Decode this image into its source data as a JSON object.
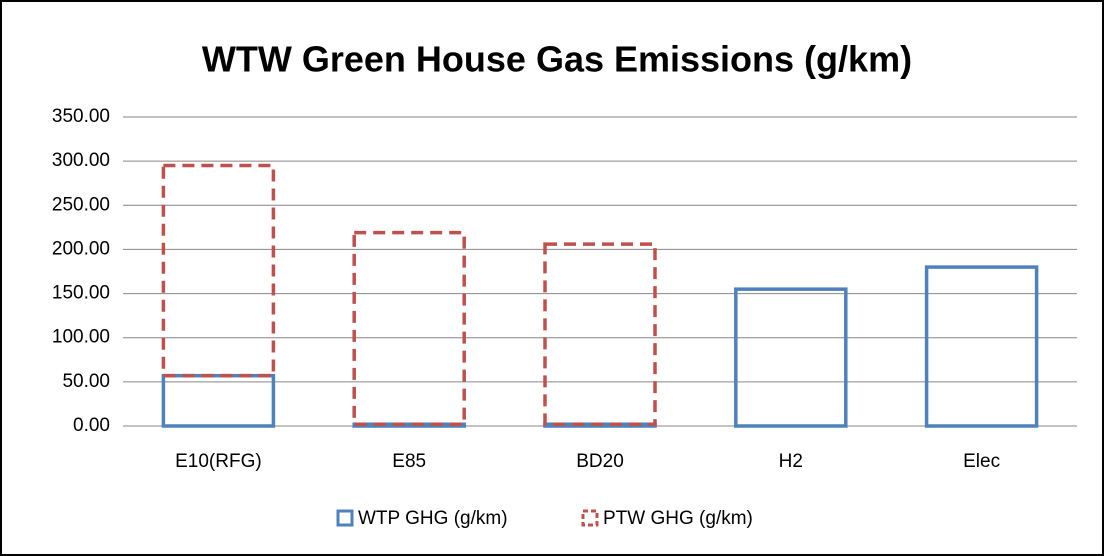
{
  "chart_data": {
    "type": "stacked_bar",
    "title": "WTW Green House Gas Emissions (g/km)",
    "categories": [
      "E10(RFG)",
      "E85",
      "BD20",
      "H2",
      "Elec"
    ],
    "series": [
      {
        "name": "WTP GHG (g/km)",
        "color": "#4f81bd",
        "line_style": "solid",
        "values": [
          57,
          2,
          2,
          155,
          180
        ]
      },
      {
        "name": "PTW GHG (g/km)",
        "color": "#c0504d",
        "line_style": "dashed",
        "values": [
          238,
          217,
          204,
          0,
          0
        ]
      }
    ],
    "ylim": [
      0,
      350
    ],
    "yticks": [
      {
        "value": 0,
        "label": "0.00"
      },
      {
        "value": 50,
        "label": "50.00"
      },
      {
        "value": 100,
        "label": "100.00"
      },
      {
        "value": 150,
        "label": "150.00"
      },
      {
        "value": 200,
        "label": "200.00"
      },
      {
        "value": 250,
        "label": "250.00"
      },
      {
        "value": 300,
        "label": "300.00"
      },
      {
        "value": 350,
        "label": "350.00"
      }
    ],
    "grid": true,
    "legend": "bottom"
  }
}
